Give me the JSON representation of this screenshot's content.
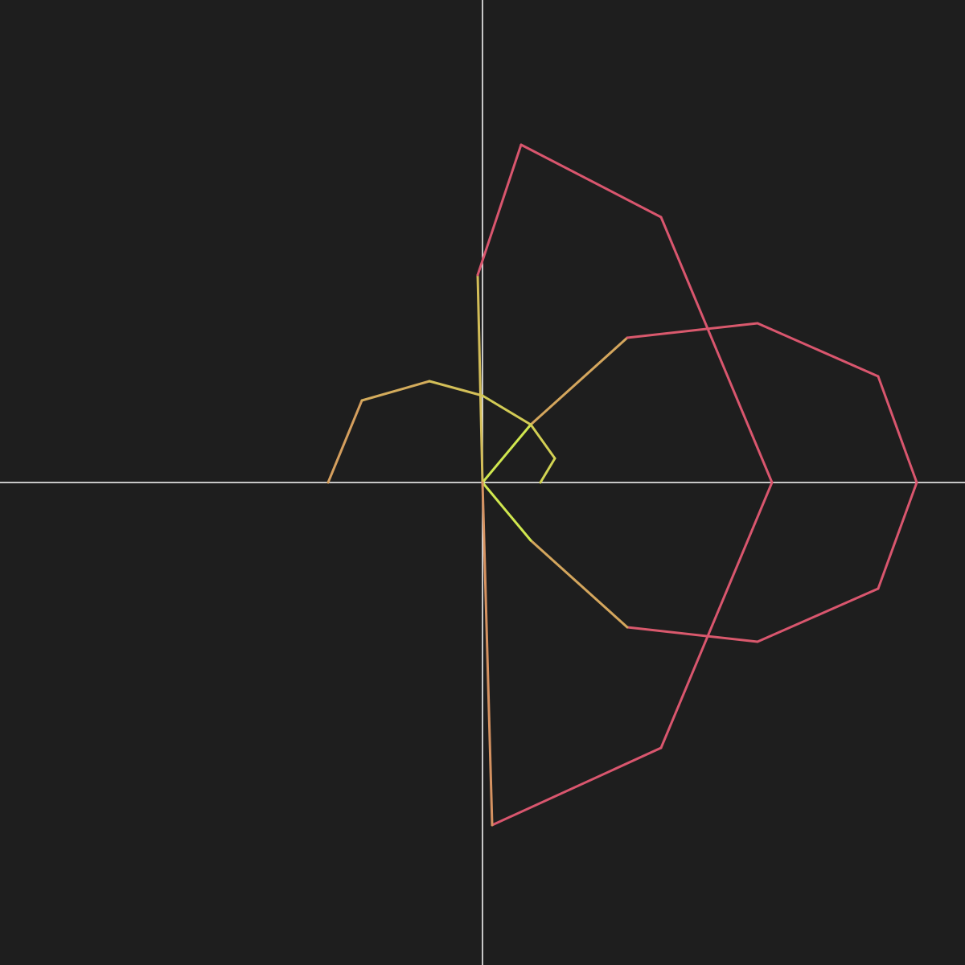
{
  "background_color": "#1e1e1e",
  "axis_color": "#ffffff",
  "color_inner": "#cfff4a",
  "color_outer": "#d9566e",
  "chart_data": {
    "type": "line",
    "title": "",
    "xlabel": "",
    "ylabel": "",
    "xlim": [
      -1,
      1
    ],
    "ylim": [
      -1,
      1
    ],
    "grid": false,
    "legend": "none",
    "axes_through_origin": true,
    "series": [
      {
        "values": [
          {
            "x": 0.0,
            "y": 0.0
          },
          {
            "x": 0.1,
            "y": 0.12
          },
          {
            "x": 0.3,
            "y": 0.3
          },
          {
            "x": 0.57,
            "y": 0.33
          },
          {
            "x": 0.82,
            "y": 0.22
          },
          {
            "x": 0.9,
            "y": 0.0
          },
          {
            "x": 0.82,
            "y": -0.22
          },
          {
            "x": 0.57,
            "y": -0.33
          },
          {
            "x": 0.3,
            "y": -0.3
          },
          {
            "x": 0.1,
            "y": -0.12
          },
          {
            "x": 0.0,
            "y": 0.0
          }
        ]
      },
      {
        "values": [
          {
            "x": 0.0,
            "y": 0.0
          },
          {
            "x": -0.01,
            "y": 0.43
          },
          {
            "x": 0.08,
            "y": 0.7
          },
          {
            "x": 0.37,
            "y": 0.55
          },
          {
            "x": 0.6,
            "y": 0.0
          },
          {
            "x": 0.37,
            "y": -0.55
          },
          {
            "x": 0.02,
            "y": -0.71
          },
          {
            "x": 0.0,
            "y": 0.0
          }
        ]
      },
      {
        "values": [
          {
            "x": -0.32,
            "y": 0.0
          },
          {
            "x": -0.25,
            "y": 0.17
          },
          {
            "x": -0.11,
            "y": 0.21
          },
          {
            "x": 0.0,
            "y": 0.18
          },
          {
            "x": 0.1,
            "y": 0.12
          },
          {
            "x": 0.15,
            "y": 0.05
          },
          {
            "x": 0.12,
            "y": 0.0
          }
        ]
      }
    ]
  }
}
